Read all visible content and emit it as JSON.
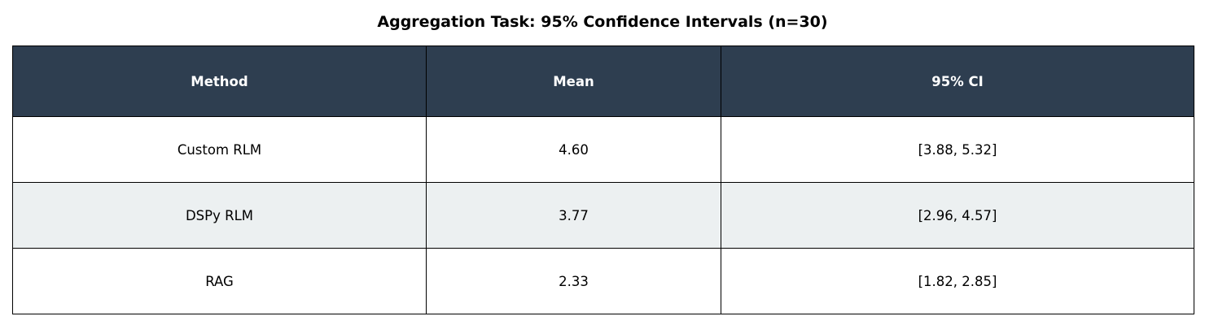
{
  "title": "Aggregation Task: 95% Confidence Intervals (n=30)",
  "table": {
    "header": [
      "Method",
      "Mean",
      "95% CI"
    ],
    "rows": [
      [
        "Custom RLM",
        "4.60",
        "[3.88, 5.32]"
      ],
      [
        "DSPy RLM",
        "3.77",
        "[2.96, 4.57]"
      ],
      [
        "RAG",
        "2.33",
        "[1.82, 2.85]"
      ]
    ]
  }
}
